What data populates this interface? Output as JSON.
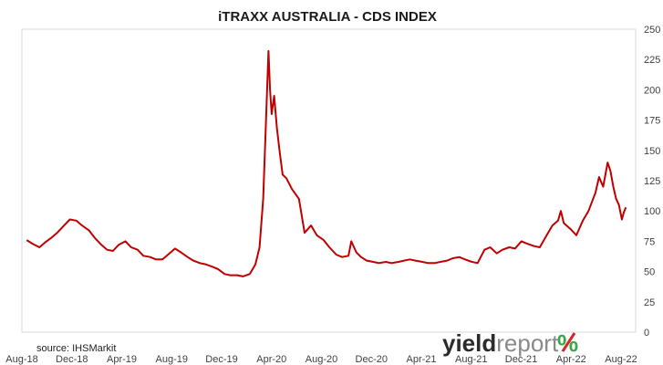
{
  "chart_data": {
    "type": "line",
    "title": "iTRAXX AUSTRALIA - CDS INDEX",
    "xlabel": "",
    "ylabel": "",
    "ylim": [
      0,
      250
    ],
    "y_ticks": [
      0,
      25,
      50,
      75,
      100,
      125,
      150,
      175,
      200,
      225,
      250
    ],
    "x_ticks": [
      "Aug-18",
      "Dec-18",
      "Apr-19",
      "Aug-19",
      "Dec-19",
      "Apr-20",
      "Aug-20",
      "Dec-20",
      "Apr-21",
      "Aug-21",
      "Dec-21",
      "Apr-22",
      "Aug-22"
    ],
    "grid": false,
    "legend": "none",
    "series": [
      {
        "color": "#c00000",
        "points": [
          [
            "2018-08-01",
            76
          ],
          [
            "2018-08-15",
            73
          ],
          [
            "2018-09-01",
            70
          ],
          [
            "2018-09-15",
            74
          ],
          [
            "2018-10-01",
            78
          ],
          [
            "2018-10-15",
            82
          ],
          [
            "2018-11-01",
            88
          ],
          [
            "2018-11-15",
            93
          ],
          [
            "2018-12-01",
            92
          ],
          [
            "2018-12-15",
            88
          ],
          [
            "2019-01-01",
            84
          ],
          [
            "2019-01-15",
            78
          ],
          [
            "2019-02-01",
            72
          ],
          [
            "2019-02-15",
            68
          ],
          [
            "2019-03-01",
            67
          ],
          [
            "2019-03-15",
            72
          ],
          [
            "2019-04-01",
            75
          ],
          [
            "2019-04-15",
            70
          ],
          [
            "2019-05-01",
            68
          ],
          [
            "2019-05-15",
            63
          ],
          [
            "2019-06-01",
            62
          ],
          [
            "2019-06-15",
            60
          ],
          [
            "2019-07-01",
            60
          ],
          [
            "2019-07-15",
            64
          ],
          [
            "2019-08-01",
            69
          ],
          [
            "2019-08-15",
            66
          ],
          [
            "2019-09-01",
            62
          ],
          [
            "2019-09-15",
            59
          ],
          [
            "2019-10-01",
            57
          ],
          [
            "2019-10-15",
            56
          ],
          [
            "2019-11-01",
            54
          ],
          [
            "2019-11-15",
            52
          ],
          [
            "2019-12-01",
            48
          ],
          [
            "2019-12-15",
            47
          ],
          [
            "2020-01-01",
            47
          ],
          [
            "2020-01-15",
            46
          ],
          [
            "2020-02-01",
            48
          ],
          [
            "2020-02-15",
            56
          ],
          [
            "2020-02-25",
            70
          ],
          [
            "2020-03-05",
            110
          ],
          [
            "2020-03-12",
            175
          ],
          [
            "2020-03-18",
            232
          ],
          [
            "2020-03-22",
            200
          ],
          [
            "2020-03-26",
            180
          ],
          [
            "2020-04-01",
            195
          ],
          [
            "2020-04-08",
            168
          ],
          [
            "2020-04-15",
            148
          ],
          [
            "2020-04-22",
            130
          ],
          [
            "2020-05-01",
            127
          ],
          [
            "2020-05-15",
            118
          ],
          [
            "2020-06-01",
            110
          ],
          [
            "2020-06-15",
            82
          ],
          [
            "2020-07-01",
            88
          ],
          [
            "2020-07-15",
            80
          ],
          [
            "2020-08-01",
            76
          ],
          [
            "2020-08-15",
            70
          ],
          [
            "2020-09-01",
            64
          ],
          [
            "2020-09-15",
            62
          ],
          [
            "2020-10-01",
            63
          ],
          [
            "2020-10-08",
            75
          ],
          [
            "2020-10-20",
            66
          ],
          [
            "2020-11-01",
            62
          ],
          [
            "2020-11-15",
            59
          ],
          [
            "2020-12-01",
            58
          ],
          [
            "2020-12-15",
            57
          ],
          [
            "2021-01-01",
            58
          ],
          [
            "2021-01-15",
            57
          ],
          [
            "2021-02-01",
            58
          ],
          [
            "2021-02-15",
            59
          ],
          [
            "2021-03-01",
            60
          ],
          [
            "2021-03-15",
            59
          ],
          [
            "2021-04-01",
            58
          ],
          [
            "2021-04-15",
            57
          ],
          [
            "2021-05-01",
            57
          ],
          [
            "2021-05-15",
            58
          ],
          [
            "2021-06-01",
            59
          ],
          [
            "2021-06-15",
            61
          ],
          [
            "2021-07-01",
            62
          ],
          [
            "2021-07-15",
            60
          ],
          [
            "2021-08-01",
            58
          ],
          [
            "2021-08-15",
            57
          ],
          [
            "2021-09-01",
            68
          ],
          [
            "2021-09-15",
            70
          ],
          [
            "2021-10-01",
            65
          ],
          [
            "2021-10-15",
            68
          ],
          [
            "2021-11-01",
            70
          ],
          [
            "2021-11-15",
            69
          ],
          [
            "2021-12-01",
            75
          ],
          [
            "2021-12-15",
            73
          ],
          [
            "2022-01-01",
            71
          ],
          [
            "2022-01-15",
            70
          ],
          [
            "2022-02-01",
            80
          ],
          [
            "2022-02-15",
            88
          ],
          [
            "2022-03-01",
            92
          ],
          [
            "2022-03-08",
            100
          ],
          [
            "2022-03-15",
            90
          ],
          [
            "2022-04-01",
            85
          ],
          [
            "2022-04-15",
            80
          ],
          [
            "2022-05-01",
            92
          ],
          [
            "2022-05-15",
            100
          ],
          [
            "2022-06-01",
            115
          ],
          [
            "2022-06-10",
            128
          ],
          [
            "2022-06-20",
            120
          ],
          [
            "2022-07-01",
            140
          ],
          [
            "2022-07-08",
            133
          ],
          [
            "2022-07-15",
            120
          ],
          [
            "2022-07-22",
            110
          ],
          [
            "2022-07-29",
            105
          ],
          [
            "2022-08-05",
            93
          ],
          [
            "2022-08-10",
            99
          ],
          [
            "2022-08-15",
            103
          ]
        ]
      }
    ],
    "x_range": [
      "2018-07-20",
      "2022-09-08"
    ]
  },
  "source_note": "source: IHSMarkit",
  "branding": {
    "word_bold": "yield",
    "word_light": "report",
    "symbol": "%",
    "colors": {
      "green": "#3aa64a",
      "red": "#d62828"
    }
  }
}
